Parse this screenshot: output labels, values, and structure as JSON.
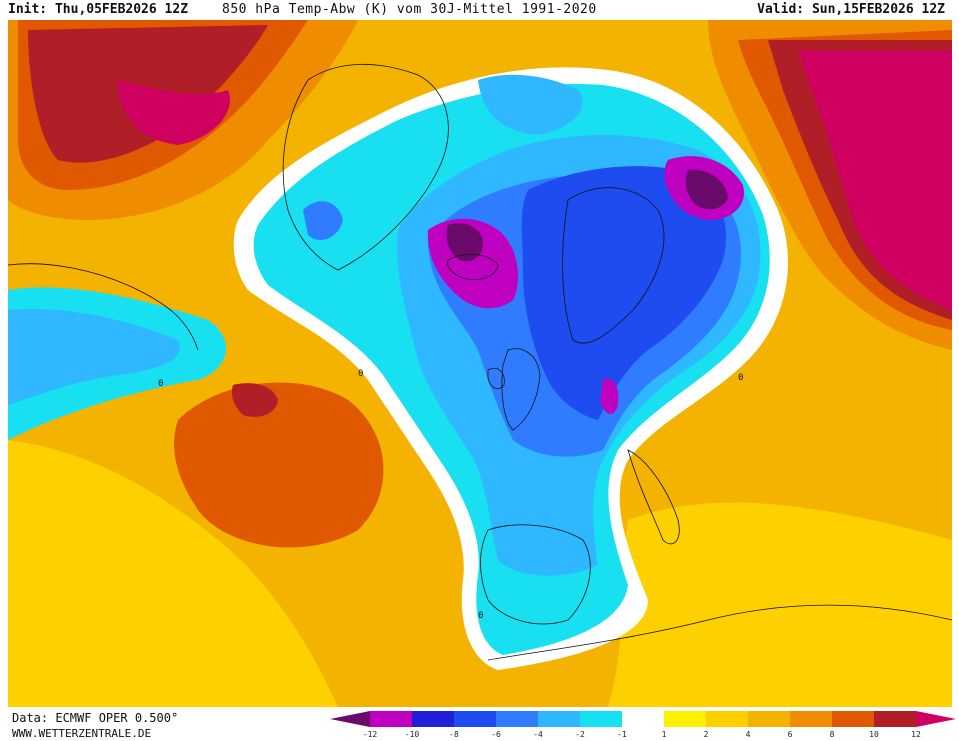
{
  "header": {
    "init_label": "Init:",
    "init_value": "Thu,05FEB2026 12Z",
    "title": "850 hPa Temp-Abw (K) vom 30J-Mittel 1991-2020",
    "valid_label": "Valid:",
    "valid_value": "Sun,15FEB2026 12Z"
  },
  "footer": {
    "source": "Data: ECMWF OPER 0.500°",
    "website": "WWW.WETTERZENTRALE.DE"
  },
  "legend": {
    "ticks": [
      "-12",
      "-10",
      "-8",
      "-6",
      "-4",
      "-2",
      "-1",
      "1",
      "2",
      "4",
      "6",
      "8",
      "10",
      "12"
    ],
    "colors": [
      "#6a0a6a",
      "#c000c0",
      "#2020d8",
      "#1e4cf0",
      "#2f7cff",
      "#2fb8ff",
      "#18e0f0",
      "#ffffff",
      "#fff000",
      "#ffd000",
      "#f3b300",
      "#f08c00",
      "#e05800",
      "#b01e28",
      "#d00060"
    ]
  },
  "map": {
    "field": "850 hPa temperature anomaly (K)",
    "contour_labels": [
      "0"
    ],
    "colors": {
      "ocean_warm": "#f3b300",
      "warm_strong": "#e05800",
      "hot": "#b01e28",
      "very_hot": "#d00060",
      "neutral": "#ffffff",
      "cold_light": "#18e0f0",
      "cold": "#2fb8ff",
      "cold_strong": "#1e4cf0",
      "very_cold": "#c000c0",
      "extreme_cold": "#6a0a6a"
    }
  }
}
